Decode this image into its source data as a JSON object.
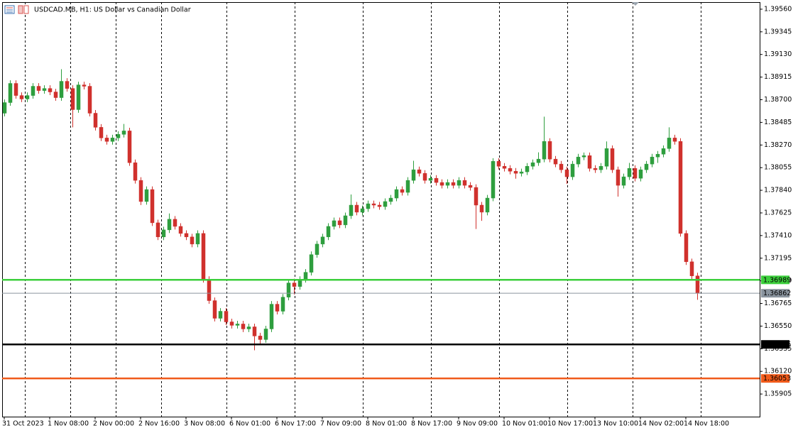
{
  "chart_data": {
    "type": "candlestick",
    "title": "USDCAD.MB, H1: US Dollar vs Canadian Dollar",
    "up_color": "#2e9e3e",
    "down_color": "#d0312d",
    "ylim": [
      1.3569,
      1.39627
    ],
    "xlim": [
      -0.375,
      133
    ],
    "yticks": [
      {
        "value": 1.3956,
        "label": "1.39560"
      },
      {
        "value": 1.39345,
        "label": "1.39345"
      },
      {
        "value": 1.3913,
        "label": "1.39130"
      },
      {
        "value": 1.38915,
        "label": "1.38915"
      },
      {
        "value": 1.387,
        "label": "1.38700"
      },
      {
        "value": 1.38485,
        "label": "1.38485"
      },
      {
        "value": 1.3827,
        "label": "1.38270"
      },
      {
        "value": 1.38055,
        "label": "1.38055"
      },
      {
        "value": 1.3784,
        "label": "1.37840"
      },
      {
        "value": 1.37625,
        "label": "1.37625"
      },
      {
        "value": 1.3741,
        "label": "1.37410"
      },
      {
        "value": 1.37195,
        "label": "1.37195"
      },
      {
        "value": 1.3698,
        "label": "1.36980"
      },
      {
        "value": 1.36765,
        "label": "1.36765"
      },
      {
        "value": 1.3655,
        "label": "1.36550"
      },
      {
        "value": 1.36335,
        "label": "1.36335"
      },
      {
        "value": 1.3612,
        "label": "1.36120"
      },
      {
        "value": 1.35905,
        "label": "1.35905"
      }
    ],
    "xticks": [
      {
        "value": 0,
        "label": "31 Oct 2023"
      },
      {
        "value": 8,
        "label": "1 Nov 08:00"
      },
      {
        "value": 16,
        "label": "2 Nov 00:00"
      },
      {
        "value": 24,
        "label": "2 Nov 16:00"
      },
      {
        "value": 32,
        "label": "3 Nov 08:00"
      },
      {
        "value": 40,
        "label": "6 Nov 01:00"
      },
      {
        "value": 48,
        "label": "6 Nov 17:00"
      },
      {
        "value": 56,
        "label": "7 Nov 09:00"
      },
      {
        "value": 64,
        "label": "8 Nov 01:00"
      },
      {
        "value": 72,
        "label": "8 Nov 17:00"
      },
      {
        "value": 80,
        "label": "9 Nov 09:00"
      },
      {
        "value": 88,
        "label": "10 Nov 01:00"
      },
      {
        "value": 96,
        "label": "10 Nov 17:00"
      },
      {
        "value": 104,
        "label": "13 Nov 10:00"
      },
      {
        "value": 112,
        "label": "14 Nov 02:00"
      },
      {
        "value": 120,
        "label": "14 Nov 18:00"
      }
    ],
    "levels": [
      {
        "value": 1.36989,
        "color": "#3ccf3c"
      },
      {
        "value": 1.36862,
        "color": "#8a949e"
      },
      {
        "value": 1.36376,
        "color": "#000000"
      },
      {
        "value": 1.36053,
        "color": "#f05a1a"
      }
    ],
    "open": [
      1.38572,
      1.38673,
      1.38855,
      1.3874,
      1.38707,
      1.3874,
      1.38828,
      1.38787,
      1.38807,
      1.38774,
      1.3872,
      1.38875,
      1.38807,
      1.38606,
      1.38841,
      1.38828,
      1.38572,
      1.38438,
      1.38337,
      1.38304,
      1.38337,
      1.38371,
      1.38404,
      1.38102,
      1.37934,
      1.37733,
      1.37847,
      1.37531,
      1.37397,
      1.37464,
      1.37565,
      1.37497,
      1.3743,
      1.37397,
      1.37329,
      1.3743,
      1.36993,
      1.36792,
      1.36624,
      1.36691,
      1.3659,
      1.36557,
      1.3657,
      1.36523,
      1.36543,
      1.36456,
      1.36422,
      1.36523,
      1.36758,
      1.36691,
      1.36825,
      1.3696,
      1.36926,
      1.36993,
      1.37061,
      1.37229,
      1.37329,
      1.37397,
      1.37497,
      1.37551,
      1.37511,
      1.37598,
      1.37699,
      1.37632,
      1.37665,
      1.37712,
      1.37699,
      1.37685,
      1.37733,
      1.37766,
      1.37847,
      1.3782,
      1.37934,
      1.38035,
      1.38001,
      1.37934,
      1.37954,
      1.37914,
      1.37887,
      1.37914,
      1.37887,
      1.37934,
      1.37887,
      1.37867,
      1.37699,
      1.37632,
      1.37766,
      1.38115,
      1.38068,
      1.38048,
      1.38021,
      1.38001,
      1.38015,
      1.38068,
      1.38102,
      1.38136,
      1.38304,
      1.38136,
      1.38089,
      1.38035,
      1.37968,
      1.38089,
      1.38156,
      1.38169,
      1.38048,
      1.38035,
      1.38068,
      1.38236,
      1.38035,
      1.37887,
      1.37968,
      1.38048,
      1.37954,
      1.38035,
      1.38089,
      1.38156,
      1.38183,
      1.38236,
      1.38337,
      1.38304,
      1.3743,
      1.37161,
      1.37027
    ],
    "high": [
      1.38703,
      1.38885,
      1.38885,
      1.3877,
      1.3877,
      1.38858,
      1.38858,
      1.38837,
      1.38837,
      1.38804,
      1.3899,
      1.38905,
      1.38837,
      1.38871,
      1.38871,
      1.38858,
      1.38602,
      1.38468,
      1.38367,
      1.38367,
      1.38401,
      1.3847,
      1.38434,
      1.38132,
      1.37964,
      1.37877,
      1.37877,
      1.37561,
      1.37494,
      1.3762,
      1.37595,
      1.37527,
      1.3746,
      1.37427,
      1.3746,
      1.3746,
      1.37023,
      1.36822,
      1.36721,
      1.36721,
      1.3662,
      1.366,
      1.366,
      1.36573,
      1.36573,
      1.36486,
      1.36553,
      1.36788,
      1.36788,
      1.36855,
      1.3699,
      1.37,
      1.37023,
      1.37091,
      1.37259,
      1.37359,
      1.37427,
      1.37527,
      1.37581,
      1.37581,
      1.37628,
      1.378,
      1.37729,
      1.37695,
      1.37742,
      1.37742,
      1.37729,
      1.37763,
      1.37796,
      1.37877,
      1.37877,
      1.37964,
      1.3812,
      1.38065,
      1.38031,
      1.37984,
      1.37984,
      1.37944,
      1.37944,
      1.37944,
      1.37964,
      1.37964,
      1.37917,
      1.37897,
      1.37729,
      1.37796,
      1.38145,
      1.38145,
      1.38098,
      1.38078,
      1.38051,
      1.38045,
      1.38098,
      1.38132,
      1.382,
      1.38539,
      1.38334,
      1.38166,
      1.38119,
      1.38065,
      1.38119,
      1.38186,
      1.38199,
      1.38199,
      1.38078,
      1.38098,
      1.38304,
      1.38266,
      1.38065,
      1.37998,
      1.381,
      1.38078,
      1.38065,
      1.38119,
      1.38186,
      1.38213,
      1.38266,
      1.38438,
      1.38367,
      1.38334,
      1.3746,
      1.37191,
      1.37057
    ],
    "low": [
      1.38542,
      1.38643,
      1.3871,
      1.38677,
      1.38677,
      1.3871,
      1.38757,
      1.38757,
      1.38744,
      1.3869,
      1.3869,
      1.38777,
      1.38438,
      1.38576,
      1.38798,
      1.38542,
      1.38408,
      1.38307,
      1.38274,
      1.38274,
      1.38307,
      1.38341,
      1.38072,
      1.37904,
      1.377,
      1.37703,
      1.37501,
      1.37367,
      1.37367,
      1.37434,
      1.37467,
      1.374,
      1.37367,
      1.37299,
      1.37299,
      1.36963,
      1.36762,
      1.36594,
      1.36594,
      1.3656,
      1.36527,
      1.36527,
      1.36493,
      1.36493,
      1.3632,
      1.3637,
      1.36392,
      1.36493,
      1.36661,
      1.36661,
      1.36795,
      1.3685,
      1.36896,
      1.36963,
      1.37031,
      1.37199,
      1.37299,
      1.37367,
      1.37467,
      1.37481,
      1.37481,
      1.37568,
      1.37602,
      1.37602,
      1.37635,
      1.37669,
      1.37655,
      1.37655,
      1.37703,
      1.37736,
      1.3779,
      1.3779,
      1.37904,
      1.37971,
      1.37904,
      1.37904,
      1.37884,
      1.37857,
      1.37857,
      1.37857,
      1.37857,
      1.37857,
      1.37837,
      1.37472,
      1.3755,
      1.37602,
      1.37736,
      1.38038,
      1.38018,
      1.37991,
      1.3795,
      1.37971,
      1.37985,
      1.38038,
      1.38072,
      1.38106,
      1.38106,
      1.38059,
      1.38005,
      1.379,
      1.37938,
      1.38059,
      1.38126,
      1.38018,
      1.38005,
      1.38005,
      1.38038,
      1.38005,
      1.3778,
      1.37857,
      1.37938,
      1.37924,
      1.37924,
      1.38005,
      1.38059,
      1.381,
      1.38153,
      1.38206,
      1.38274,
      1.374,
      1.37131,
      1.36997,
      1.368
    ],
    "close": [
      1.38673,
      1.38855,
      1.3874,
      1.38707,
      1.3874,
      1.38828,
      1.38787,
      1.38807,
      1.38774,
      1.3872,
      1.38875,
      1.38807,
      1.38606,
      1.38841,
      1.38828,
      1.38572,
      1.38438,
      1.38337,
      1.38304,
      1.38337,
      1.38371,
      1.38404,
      1.38102,
      1.37934,
      1.37733,
      1.37847,
      1.37531,
      1.37397,
      1.37464,
      1.37565,
      1.37497,
      1.3743,
      1.37397,
      1.37329,
      1.3743,
      1.36993,
      1.36792,
      1.36624,
      1.36691,
      1.3659,
      1.36557,
      1.3657,
      1.36523,
      1.36543,
      1.36456,
      1.36422,
      1.36523,
      1.36758,
      1.36691,
      1.36825,
      1.3696,
      1.36926,
      1.36993,
      1.37061,
      1.37229,
      1.37329,
      1.37397,
      1.37497,
      1.37551,
      1.37511,
      1.37598,
      1.37699,
      1.37632,
      1.37665,
      1.37712,
      1.37699,
      1.37685,
      1.37733,
      1.37766,
      1.37847,
      1.3782,
      1.37934,
      1.38035,
      1.38001,
      1.37934,
      1.37954,
      1.37914,
      1.37887,
      1.37914,
      1.37887,
      1.37934,
      1.37887,
      1.37867,
      1.37699,
      1.37632,
      1.37766,
      1.38115,
      1.38068,
      1.38048,
      1.38021,
      1.38001,
      1.38015,
      1.38068,
      1.38102,
      1.38136,
      1.38304,
      1.38136,
      1.38089,
      1.38035,
      1.37968,
      1.38089,
      1.38156,
      1.38169,
      1.38048,
      1.38035,
      1.38068,
      1.38236,
      1.38035,
      1.37887,
      1.37968,
      1.38048,
      1.37954,
      1.38035,
      1.38089,
      1.38156,
      1.38183,
      1.38236,
      1.38337,
      1.38304,
      1.3743,
      1.37161,
      1.37027,
      1.36862
    ]
  }
}
